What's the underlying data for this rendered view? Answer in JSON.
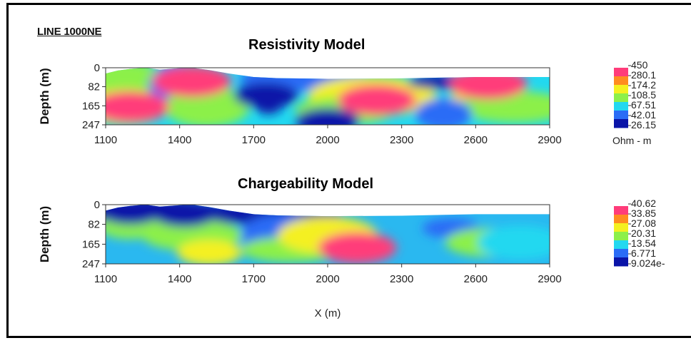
{
  "header": {
    "line_label": "LINE 1000NE"
  },
  "chart_data": [
    {
      "type": "heatmap",
      "title": "Resistivity Model",
      "xlabel": "",
      "ylabel": "Depth (m)",
      "x_ticks": [
        1100,
        1400,
        1700,
        2000,
        2300,
        2600,
        2900
      ],
      "y_ticks": [
        0,
        82,
        165,
        247
      ],
      "xlim": [
        1100,
        2900
      ],
      "ylim": [
        0,
        247
      ],
      "colorbar": {
        "labels": [
          "450",
          "280.1",
          "174.2",
          "108.5",
          "67.51",
          "42.01",
          "26.15"
        ],
        "unit": "Ohm - m",
        "colors": [
          "#ff3c7a",
          "#ff8c20",
          "#f4f020",
          "#8cf04a",
          "#22d8f0",
          "#2a6cf6",
          "#0a14a8"
        ]
      },
      "surface_profile": [
        [
          1100,
          25
        ],
        [
          1150,
          12
        ],
        [
          1200,
          5
        ],
        [
          1260,
          0
        ],
        [
          1320,
          8
        ],
        [
          1400,
          2
        ],
        [
          1450,
          0
        ],
        [
          1520,
          10
        ],
        [
          1600,
          25
        ],
        [
          1700,
          40
        ],
        [
          1800,
          45
        ],
        [
          2000,
          48
        ],
        [
          2300,
          46
        ],
        [
          2600,
          40
        ],
        [
          2900,
          40
        ]
      ],
      "anomalies": [
        {
          "x": 1200,
          "depth": 170,
          "value": "high"
        },
        {
          "x": 1450,
          "depth": 60,
          "value": "high"
        },
        {
          "x": 2200,
          "depth": 140,
          "value": "high"
        },
        {
          "x": 2650,
          "depth": 70,
          "value": "high"
        },
        {
          "x": 1750,
          "depth": 120,
          "value": "low"
        },
        {
          "x": 2000,
          "depth": 230,
          "value": "low"
        }
      ]
    },
    {
      "type": "heatmap",
      "title": "Chargeability Model",
      "xlabel": "X (m)",
      "ylabel": "Depth (m)",
      "x_ticks": [
        1100,
        1400,
        1700,
        2000,
        2300,
        2600,
        2900
      ],
      "y_ticks": [
        0,
        82,
        165,
        247
      ],
      "xlim": [
        1100,
        2900
      ],
      "ylim": [
        0,
        247
      ],
      "colorbar": {
        "labels": [
          "40.62",
          "33.85",
          "27.08",
          "20.31",
          "13.54",
          "6.771",
          "9.024e-"
        ],
        "unit": "",
        "colors": [
          "#ff3c7a",
          "#ff8c20",
          "#f4f020",
          "#8cf04a",
          "#22d8f0",
          "#2a6cf6",
          "#0a14a8"
        ]
      },
      "surface_profile": [
        [
          1100,
          25
        ],
        [
          1150,
          12
        ],
        [
          1200,
          5
        ],
        [
          1260,
          0
        ],
        [
          1320,
          8
        ],
        [
          1400,
          2
        ],
        [
          1450,
          0
        ],
        [
          1520,
          10
        ],
        [
          1600,
          25
        ],
        [
          1700,
          40
        ],
        [
          1800,
          45
        ],
        [
          2000,
          48
        ],
        [
          2300,
          46
        ],
        [
          2600,
          40
        ],
        [
          2900,
          40
        ]
      ],
      "anomalies": [
        {
          "x": 2120,
          "depth": 180,
          "value": "high"
        },
        {
          "x": 1520,
          "depth": 200,
          "value": "medium-high"
        },
        {
          "x": 1200,
          "depth": 90,
          "value": "medium"
        },
        {
          "x": 1420,
          "depth": 40,
          "value": "low"
        },
        {
          "x": 1200,
          "depth": 30,
          "value": "low"
        }
      ]
    }
  ]
}
